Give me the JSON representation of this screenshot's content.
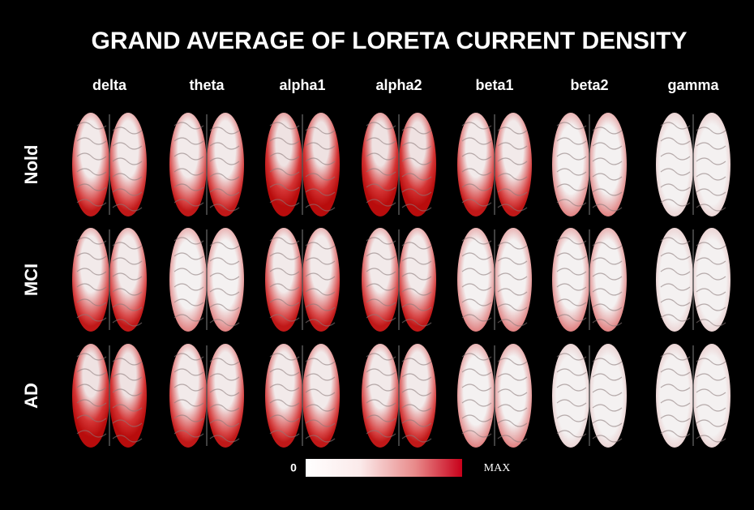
{
  "title": "GRAND AVERAGE OF LORETA CURRENT DENSITY",
  "columns": [
    "delta",
    "theta",
    "alpha1",
    "alpha2",
    "beta1",
    "beta2",
    "gamma"
  ],
  "rows": [
    "Nold",
    "MCI",
    "AD"
  ],
  "colorbar": {
    "min_label": "0",
    "max_label": "MAX"
  }
}
